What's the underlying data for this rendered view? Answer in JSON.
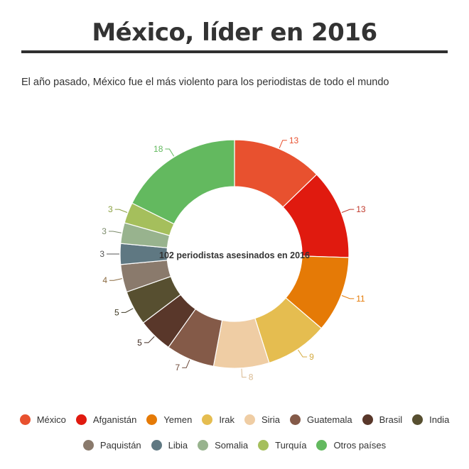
{
  "title": "México, líder en 2016",
  "subtitle": "El año pasado, México fue el más violento para los periodistas de todo el mundo",
  "chart_data": {
    "type": "pie",
    "variant": "donut",
    "center_label": "102 periodistas asesinados en 2016",
    "slices": [
      {
        "name": "México",
        "value": 13,
        "color": "#e8512f"
      },
      {
        "name": "Afganistán",
        "value": 13,
        "color": "#e01a0f"
      },
      {
        "name": "Yemen",
        "value": 11,
        "color": "#e57a06"
      },
      {
        "name": "Irak",
        "value": 9,
        "color": "#e5bd50"
      },
      {
        "name": "Siria",
        "value": 8,
        "color": "#efcda4"
      },
      {
        "name": "Guatemala",
        "value": 7,
        "color": "#845a48"
      },
      {
        "name": "Brasil",
        "value": 5,
        "color": "#59372a"
      },
      {
        "name": "India",
        "value": 5,
        "color": "#574f30"
      },
      {
        "name": "Paquistán",
        "value": 4,
        "color": "#8a7a6c"
      },
      {
        "name": "Libia",
        "value": 3,
        "color": "#5f7882"
      },
      {
        "name": "Somalia",
        "value": 3,
        "color": "#98b38e"
      },
      {
        "name": "Turquía",
        "value": 3,
        "color": "#a5bf5c"
      },
      {
        "name": "Otros países",
        "value": 18,
        "color": "#63b95f"
      }
    ],
    "value_label_colors": [
      "#e8512f",
      "#c0392b",
      "#e57a06",
      "#d4aa40",
      "#d9b98f",
      "#6e4a3a",
      "#3f2a20",
      "#3f3a25",
      "#8a6a40",
      "#555555",
      "#7a8a6a",
      "#8aa040",
      "#63b95f"
    ],
    "legend_position": "bottom"
  }
}
